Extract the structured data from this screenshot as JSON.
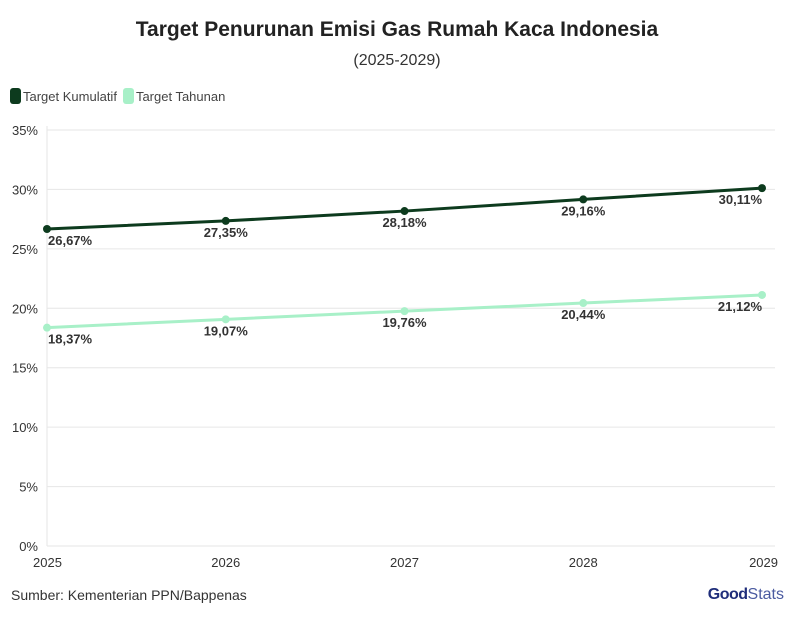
{
  "header": {
    "title": "Target Penurunan Emisi Gas Rumah Kaca Indonesia",
    "subtitle": "(2025-2029)"
  },
  "legend": {
    "items": [
      {
        "label": "Target Kumulatif",
        "color": "#0d3b1e"
      },
      {
        "label": "Target Tahunan",
        "color": "#a8f0c8"
      }
    ]
  },
  "footer": {
    "source": "Sumber: Kementerian PPN/Bappenas",
    "logo_bold": "Good",
    "logo_light": "Stats"
  },
  "chart_data": {
    "type": "line",
    "x": [
      "2025",
      "2026",
      "2027",
      "2028",
      "2029"
    ],
    "ylim": [
      0,
      35
    ],
    "yticks": [
      0,
      5,
      10,
      15,
      20,
      25,
      30,
      35
    ],
    "ytick_labels": [
      "0%",
      "5%",
      "10%",
      "15%",
      "20%",
      "25%",
      "30%",
      "35%"
    ],
    "grid": true,
    "legend_position": "top-left",
    "series": [
      {
        "name": "Target Kumulatif",
        "color": "#0d3b1e",
        "values": [
          26.67,
          27.35,
          28.18,
          29.16,
          30.11
        ],
        "labels": [
          "26,67%",
          "27,35%",
          "28,18%",
          "29,16%",
          "30,11%"
        ]
      },
      {
        "name": "Target Tahunan",
        "color": "#a8f0c8",
        "values": [
          18.37,
          19.07,
          19.76,
          20.44,
          21.12
        ],
        "labels": [
          "18,37%",
          "19,07%",
          "19,76%",
          "20,44%",
          "21,12%"
        ]
      }
    ]
  }
}
